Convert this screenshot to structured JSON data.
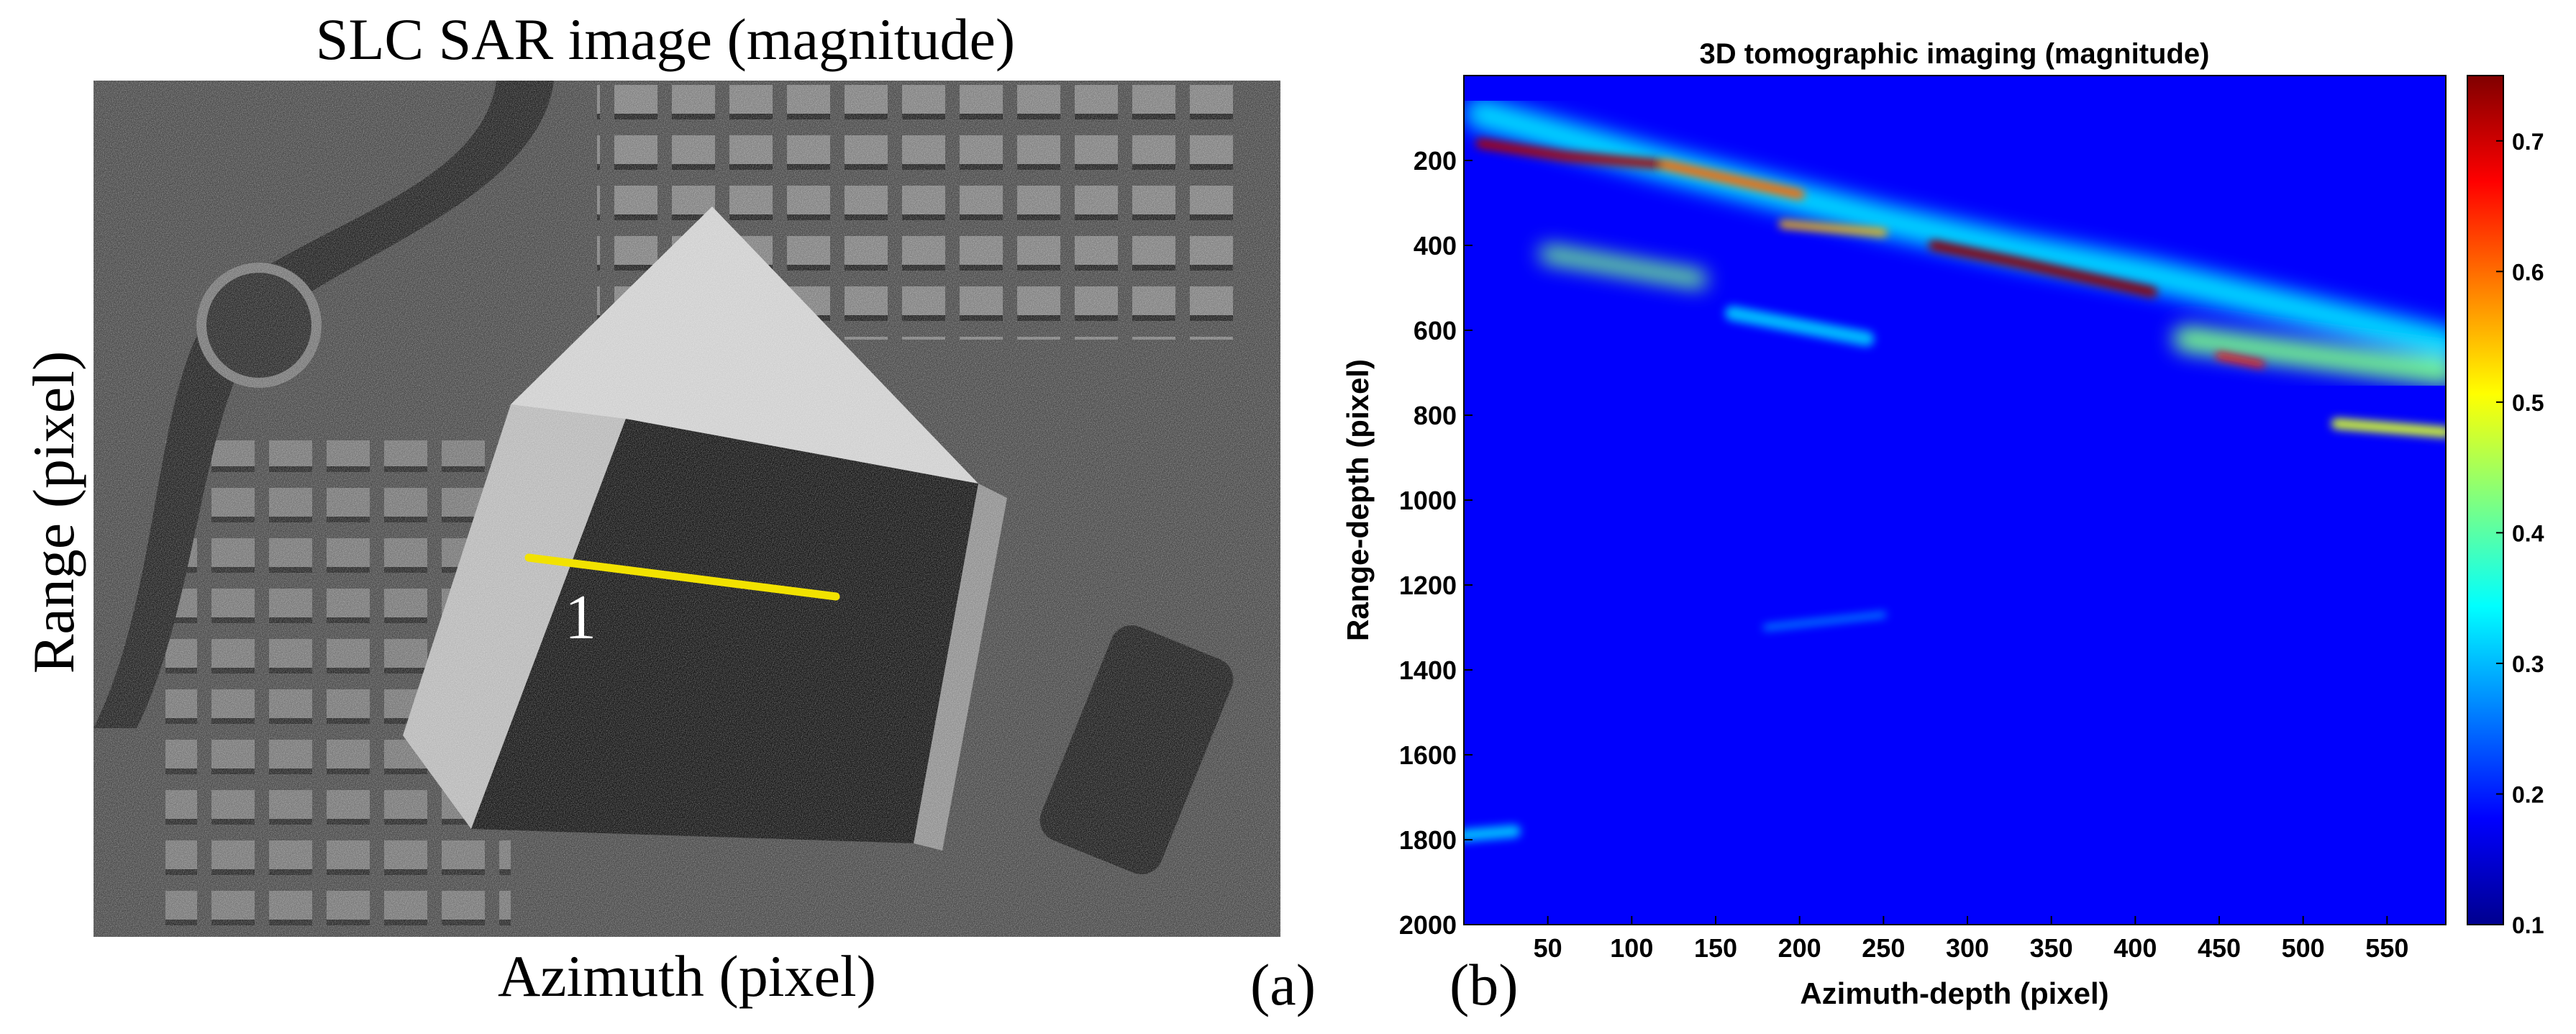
{
  "panel_a": {
    "title": "SLC SAR image (magnitude)",
    "xlabel": "Azimuth (pixel)",
    "ylabel": "Range (pixel)",
    "line_label": "1",
    "panel_letter": "(a)",
    "line_color": "#f2e200"
  },
  "panel_b": {
    "panel_letter": "(b)"
  },
  "chart_data": {
    "type": "heatmap",
    "title": "3D tomographic imaging (magnitude)",
    "xlabel": "Azimuth-depth (pixel)",
    "ylabel": "Range-depth (pixel)",
    "x_ticks": [
      50,
      100,
      150,
      200,
      250,
      300,
      350,
      400,
      450,
      500,
      550
    ],
    "y_ticks": [
      200,
      400,
      600,
      800,
      1000,
      1200,
      1400,
      1600,
      1800,
      2000
    ],
    "xlim": [
      0,
      585
    ],
    "ylim": [
      0,
      2000
    ],
    "y_reversed": true,
    "colormap": "jet",
    "colorbar_ticks": [
      0.1,
      0.2,
      0.3,
      0.4,
      0.5,
      0.6,
      0.7
    ],
    "colorbar_range": [
      0.1,
      0.75
    ],
    "background_level": 0.18,
    "features": [
      {
        "x": [
          10,
          120,
          250,
          330,
          410,
          585
        ],
        "y": [
          90,
          210,
          340,
          410,
          470,
          630
        ],
        "width": 75,
        "level": 0.32
      },
      {
        "x": [
          10,
          60,
          120
        ],
        "y": [
          160,
          190,
          210
        ],
        "width": 22,
        "level": 0.72
      },
      {
        "x": [
          120,
          200
        ],
        "y": [
          210,
          280
        ],
        "width": 24,
        "level": 0.6
      },
      {
        "x": [
          280,
          330,
          410
        ],
        "y": [
          400,
          440,
          510
        ],
        "width": 24,
        "level": 0.74
      },
      {
        "x": [
          190,
          250
        ],
        "y": [
          350,
          370
        ],
        "width": 18,
        "level": 0.55
      },
      {
        "x": [
          450,
          475
        ],
        "y": [
          660,
          680
        ],
        "width": 16,
        "level": 0.66
      },
      {
        "x": [
          520,
          585
        ],
        "y": [
          820,
          840
        ],
        "width": 25,
        "level": 0.48
      },
      {
        "x": [
          50,
          140
        ],
        "y": [
          420,
          480
        ],
        "width": 40,
        "level": 0.42
      },
      {
        "x": [
          160,
          240
        ],
        "y": [
          560,
          620
        ],
        "width": 35,
        "level": 0.3
      },
      {
        "x": [
          430,
          585
        ],
        "y": [
          620,
          700
        ],
        "width": 60,
        "level": 0.42
      },
      {
        "x": [
          180,
          250
        ],
        "y": [
          1300,
          1270
        ],
        "width": 14,
        "level": 0.27
      },
      {
        "x": [
          0,
          30
        ],
        "y": [
          1790,
          1780
        ],
        "width": 30,
        "level": 0.3
      }
    ]
  }
}
